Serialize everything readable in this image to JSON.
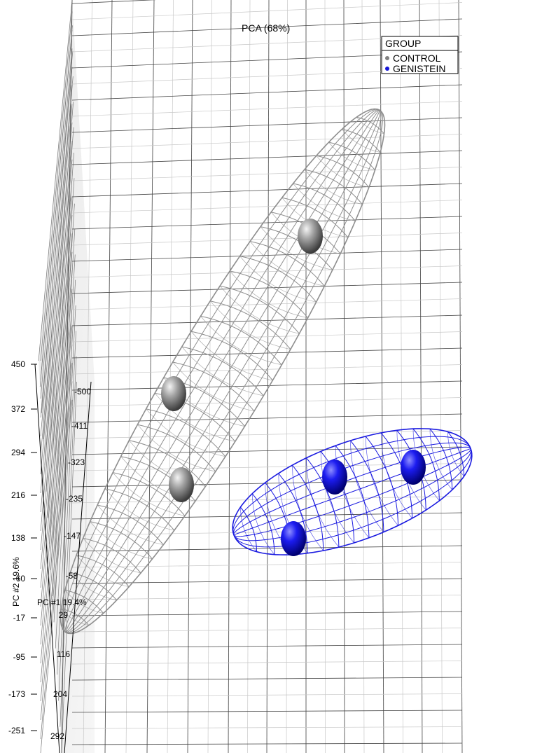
{
  "chart_data": {
    "type": "scatter",
    "title": "PCA (68%)",
    "projection": "3d",
    "axes": {
      "pc1": {
        "label": "PC #1 19.4%",
        "ticks": [
          "-500",
          "-411",
          "-323",
          "-235",
          "-147",
          "-58",
          "29",
          "116",
          "204",
          "292"
        ]
      },
      "pc2": {
        "label": "PC #2 19.6%",
        "ticks": [
          "450",
          "372",
          "294",
          "216",
          "138",
          "60",
          "-17",
          "-95",
          "-173",
          "-251"
        ]
      }
    },
    "legend": {
      "title": "GROUP",
      "position": "top-right",
      "entries": [
        {
          "name": "CONTROL",
          "color": "#808080"
        },
        {
          "name": "GENISTEIN",
          "color": "#1515d8"
        }
      ]
    },
    "series": [
      {
        "name": "CONTROL",
        "color": "#8a8a8a",
        "points": [
          {
            "pc1": -411,
            "pc2": 400
          },
          {
            "pc1": -323,
            "pc2": 250
          },
          {
            "pc1": -147,
            "pc2": 160
          }
        ]
      },
      {
        "name": "GENISTEIN",
        "color": "#1515d8",
        "points": [
          {
            "pc1": 116,
            "pc2": 160
          },
          {
            "pc1": 204,
            "pc2": 175
          },
          {
            "pc1": 29,
            "pc2": 100
          }
        ]
      }
    ]
  }
}
